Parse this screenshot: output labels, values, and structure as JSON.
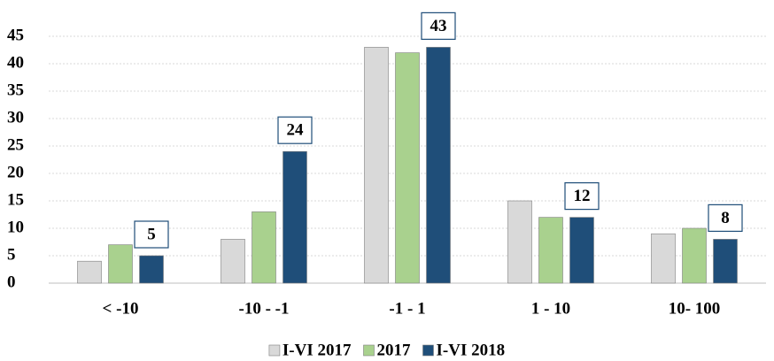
{
  "chart_data": {
    "type": "bar",
    "categories": [
      "< -10",
      "-10 - -1",
      "-1 - 1",
      "1 - 10",
      "10- 100"
    ],
    "series": [
      {
        "name": "I-VI 2017",
        "color": "#d9d9d9",
        "values": [
          4,
          8,
          43,
          15,
          9
        ]
      },
      {
        "name": "2017",
        "color": "#a9d18e",
        "values": [
          7,
          13,
          42,
          12,
          10
        ]
      },
      {
        "name": "I-VI 2018",
        "color": "#1f4e79",
        "values": [
          5,
          24,
          43,
          12,
          8
        ],
        "data_labels": true
      }
    ],
    "ylim": [
      0,
      45
    ],
    "yticks": [
      0,
      5,
      10,
      15,
      20,
      25,
      30,
      35,
      40,
      45
    ],
    "grid": true,
    "legend": "bottom"
  }
}
